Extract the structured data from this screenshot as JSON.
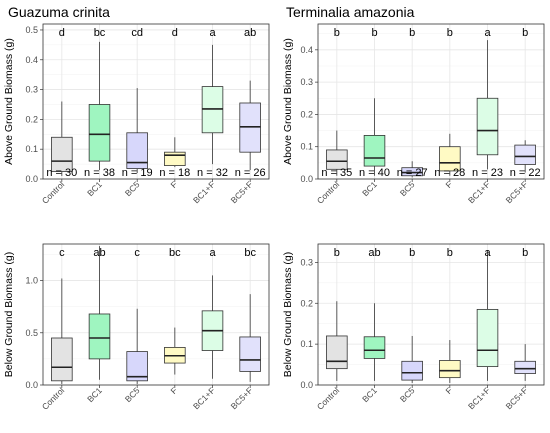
{
  "colors": {
    "Control": "#e3e3e3",
    "BC1": "#9ff5c0",
    "BC5": "#d7d7fb",
    "F": "#fffac4",
    "BC1+F": "#dcfde6",
    "BC5+F": "#e1e1fb"
  },
  "chart_data": [
    {
      "type": "box",
      "title": "Guazuma crinita",
      "ylabel": "Above Ground Biomass (g)",
      "ylim": [
        0,
        0.52
      ],
      "yticks": [
        0.0,
        0.1,
        0.2,
        0.3,
        0.4,
        0.5
      ],
      "yticks_labels": [
        "0.0",
        "0.1",
        "0.2",
        "0.3",
        "0.4",
        "0.5"
      ],
      "categories": [
        "Control",
        "BC1",
        "BC5",
        "F",
        "BC1+F",
        "BC5+F"
      ],
      "letters": [
        "d",
        "bc",
        "cd",
        "d",
        "a",
        "ab"
      ],
      "n_labels": [
        "n = 30",
        "n = 38",
        "n = 19",
        "n = 18",
        "n = 32",
        "n = 26"
      ],
      "boxes": [
        {
          "min": 0.01,
          "q1": 0.025,
          "median": 0.06,
          "q3": 0.14,
          "max": 0.26
        },
        {
          "min": 0.03,
          "q1": 0.06,
          "median": 0.15,
          "q3": 0.25,
          "max": 0.46
        },
        {
          "min": 0.02,
          "q1": 0.035,
          "median": 0.055,
          "q3": 0.155,
          "max": 0.305
        },
        {
          "min": 0.04,
          "q1": 0.045,
          "median": 0.08,
          "q3": 0.09,
          "max": 0.14
        },
        {
          "min": 0.05,
          "q1": 0.155,
          "median": 0.235,
          "q3": 0.31,
          "max": 0.45
        },
        {
          "min": 0.03,
          "q1": 0.09,
          "median": 0.175,
          "q3": 0.255,
          "max": 0.33
        }
      ]
    },
    {
      "type": "box",
      "title": "Terminalia amazonia",
      "ylabel": "Above Ground Biomass (g)",
      "ylim": [
        0,
        0.48
      ],
      "yticks": [
        0.0,
        0.1,
        0.2,
        0.3,
        0.4
      ],
      "yticks_labels": [
        "0.0",
        "0.1",
        "0.2",
        "0.3",
        "0.4"
      ],
      "categories": [
        "Control",
        "BC1",
        "BC5",
        "F",
        "BC1+F",
        "BC5+F"
      ],
      "letters": [
        "b",
        "b",
        "b",
        "b",
        "a",
        "b"
      ],
      "n_labels": [
        "n = 35",
        "n = 40",
        "n = 27",
        "n = 28",
        "n = 23",
        "n = 22"
      ],
      "boxes": [
        {
          "min": 0.01,
          "q1": 0.03,
          "median": 0.055,
          "q3": 0.09,
          "max": 0.15
        },
        {
          "min": 0.01,
          "q1": 0.04,
          "median": 0.065,
          "q3": 0.135,
          "max": 0.25
        },
        {
          "min": 0.005,
          "q1": 0.01,
          "median": 0.02,
          "q3": 0.035,
          "max": 0.055
        },
        {
          "min": 0.01,
          "q1": 0.025,
          "median": 0.05,
          "q3": 0.1,
          "max": 0.14
        },
        {
          "min": 0.03,
          "q1": 0.075,
          "median": 0.15,
          "q3": 0.25,
          "max": 0.43
        },
        {
          "min": 0.02,
          "q1": 0.045,
          "median": 0.07,
          "q3": 0.105,
          "max": 0.12
        }
      ]
    },
    {
      "type": "box",
      "title": "",
      "ylabel": "Below Ground Biomass (g)",
      "ylim": [
        0,
        1.35
      ],
      "yticks": [
        0.0,
        0.5,
        1.0
      ],
      "yticks_labels": [
        "0.0",
        "0.5",
        "1.0"
      ],
      "categories": [
        "Control",
        "BC1",
        "BC5",
        "F",
        "BC1+F",
        "BC5+F"
      ],
      "letters": [
        "c",
        "ab",
        "c",
        "bc",
        "a",
        "bc"
      ],
      "n_labels": [],
      "boxes": [
        {
          "min": 0.01,
          "q1": 0.04,
          "median": 0.17,
          "q3": 0.45,
          "max": 1.02
        },
        {
          "min": 0.05,
          "q1": 0.25,
          "median": 0.45,
          "q3": 0.68,
          "max": 1.33
        },
        {
          "min": 0.01,
          "q1": 0.04,
          "median": 0.08,
          "q3": 0.32,
          "max": 0.73
        },
        {
          "min": 0.1,
          "q1": 0.21,
          "median": 0.28,
          "q3": 0.36,
          "max": 0.55
        },
        {
          "min": 0.06,
          "q1": 0.33,
          "median": 0.52,
          "q3": 0.71,
          "max": 1.05
        },
        {
          "min": 0.03,
          "q1": 0.13,
          "median": 0.24,
          "q3": 0.46,
          "max": 0.87
        }
      ]
    },
    {
      "type": "box",
      "title": "",
      "ylabel": "Below Ground Biomass (g)",
      "ylim": [
        0,
        0.345
      ],
      "yticks": [
        0.0,
        0.1,
        0.2,
        0.3
      ],
      "yticks_labels": [
        "0.0",
        "0.1",
        "0.2",
        "0.3"
      ],
      "categories": [
        "Control",
        "BC1",
        "BC5",
        "F",
        "BC1+F",
        "BC5+F"
      ],
      "letters": [
        "b",
        "ab",
        "b",
        "b",
        "a",
        "b"
      ],
      "n_labels": [],
      "boxes": [
        {
          "min": 0.01,
          "q1": 0.04,
          "median": 0.058,
          "q3": 0.12,
          "max": 0.205
        },
        {
          "min": 0.01,
          "q1": 0.065,
          "median": 0.085,
          "q3": 0.118,
          "max": 0.2
        },
        {
          "min": 0.005,
          "q1": 0.012,
          "median": 0.03,
          "q3": 0.058,
          "max": 0.12
        },
        {
          "min": 0.005,
          "q1": 0.018,
          "median": 0.035,
          "q3": 0.06,
          "max": 0.11
        },
        {
          "min": 0.01,
          "q1": 0.045,
          "median": 0.085,
          "q3": 0.185,
          "max": 0.33
        },
        {
          "min": 0.01,
          "q1": 0.028,
          "median": 0.04,
          "q3": 0.058,
          "max": 0.1
        }
      ]
    }
  ]
}
